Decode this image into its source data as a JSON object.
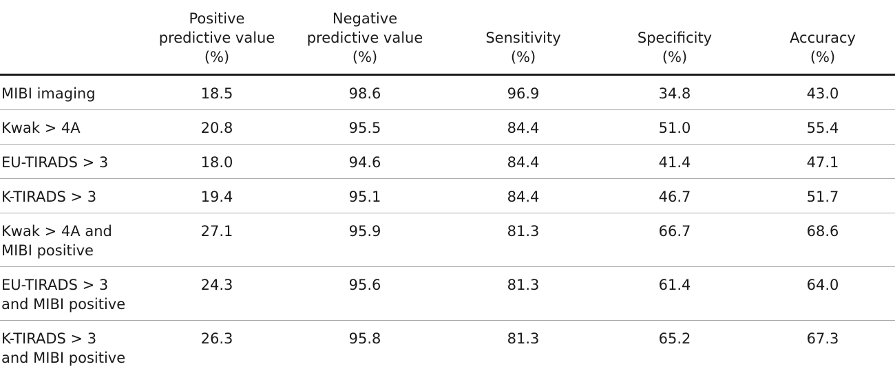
{
  "table": {
    "headers": [
      [
        ""
      ],
      [
        "Positive",
        "predictive value",
        "(%)"
      ],
      [
        "Negative",
        "predictive value",
        "(%)"
      ],
      [
        "Sensitivity",
        "(%)"
      ],
      [
        "Specificity",
        "(%)"
      ],
      [
        "Accuracy",
        "(%)"
      ]
    ],
    "rows": [
      {
        "label": "MIBI imaging",
        "values": [
          "18.5",
          "98.6",
          "96.9",
          "34.8",
          "43.0"
        ]
      },
      {
        "label": "Kwak > 4A",
        "values": [
          "20.8",
          "95.5",
          "84.4",
          "51.0",
          "55.4"
        ]
      },
      {
        "label": "EU-TIRADS > 3",
        "values": [
          "18.0",
          "94.6",
          "84.4",
          "41.4",
          "47.1"
        ]
      },
      {
        "label": "K-TIRADS > 3",
        "values": [
          "19.4",
          "95.1",
          "84.4",
          "46.7",
          "51.7"
        ]
      },
      {
        "label": "Kwak > 4A and\nMIBI positive",
        "values": [
          "27.1",
          "95.9",
          "81.3",
          "66.7",
          "68.6"
        ]
      },
      {
        "label": "EU-TIRADS > 3\nand MIBI positive",
        "values": [
          "24.3",
          "95.6",
          "81.3",
          "61.4",
          "64.0"
        ]
      },
      {
        "label": "K-TIRADS > 3\nand MIBI positive",
        "values": [
          "26.3",
          "95.8",
          "81.3",
          "65.2",
          "67.3"
        ]
      }
    ]
  }
}
